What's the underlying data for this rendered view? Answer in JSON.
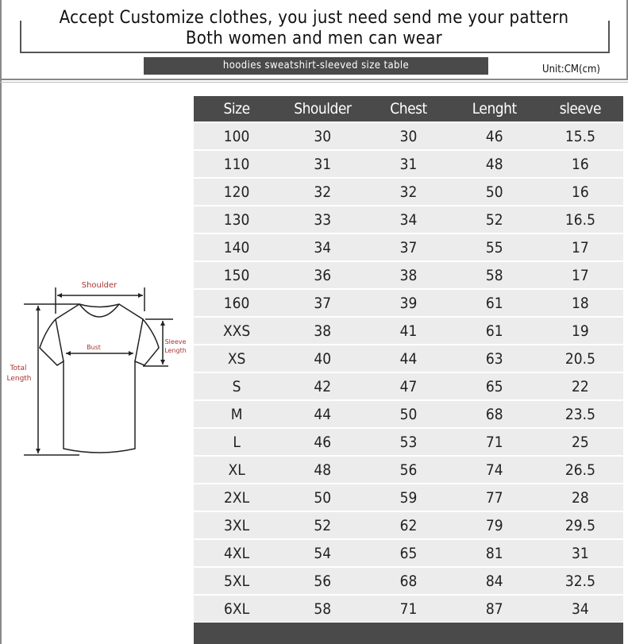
{
  "header": {
    "line1": "Accept Customize clothes, you just need send me your pattern",
    "line2": "Both women and men can wear",
    "banner": "hoodies sweatshirt-sleeved size table",
    "unit": "Unit:CM(cm)"
  },
  "diagram": {
    "shoulder": "Shoulder",
    "bust": "Bust",
    "sleeve_1": "Sleeve",
    "sleeve_2": "Length",
    "total_1": "Total",
    "total_2": "Length"
  },
  "table": {
    "columns": [
      "Size",
      "Shoulder",
      "Chest",
      "Lenght",
      "sleeve"
    ],
    "rows": [
      [
        "100",
        "30",
        "30",
        "46",
        "15.5"
      ],
      [
        "110",
        "31",
        "31",
        "48",
        "16"
      ],
      [
        "120",
        "32",
        "32",
        "50",
        "16"
      ],
      [
        "130",
        "33",
        "34",
        "52",
        "16.5"
      ],
      [
        "140",
        "34",
        "37",
        "55",
        "17"
      ],
      [
        "150",
        "36",
        "38",
        "58",
        "17"
      ],
      [
        "160",
        "37",
        "39",
        "61",
        "18"
      ],
      [
        "XXS",
        "38",
        "41",
        "61",
        "19"
      ],
      [
        "XS",
        "40",
        "44",
        "63",
        "20.5"
      ],
      [
        "S",
        "42",
        "47",
        "65",
        "22"
      ],
      [
        "M",
        "44",
        "50",
        "68",
        "23.5"
      ],
      [
        "L",
        "46",
        "53",
        "71",
        "25"
      ],
      [
        "XL",
        "48",
        "56",
        "74",
        "26.5"
      ],
      [
        "2XL",
        "50",
        "59",
        "77",
        "28"
      ],
      [
        "3XL",
        "52",
        "62",
        "79",
        "29.5"
      ],
      [
        "4XL",
        "54",
        "65",
        "81",
        "31"
      ],
      [
        "5XL",
        "56",
        "68",
        "84",
        "32.5"
      ],
      [
        "6XL",
        "58",
        "71",
        "87",
        "34"
      ]
    ]
  }
}
